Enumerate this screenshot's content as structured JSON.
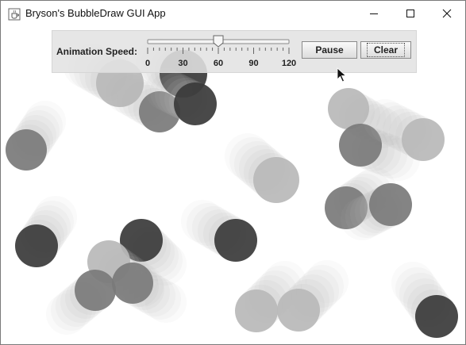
{
  "window": {
    "title": "Bryson's BubbleDraw GUI App",
    "icon": "java-cup-icon"
  },
  "controls": {
    "speed_label": "Animation Speed:",
    "slider": {
      "min": 0,
      "max": 120,
      "value": 60,
      "tick_labels": [
        "0",
        "30",
        "60",
        "90",
        "120"
      ]
    },
    "pause_label": "Pause",
    "clear_label": "Clear"
  },
  "colors": {
    "panel": "#e2e2e2",
    "canvas": "#ffffff",
    "bubble_dark": "#3a3a3a",
    "bubble_mid": "#7a7a7a",
    "bubble_light": "#b8b8b8"
  }
}
